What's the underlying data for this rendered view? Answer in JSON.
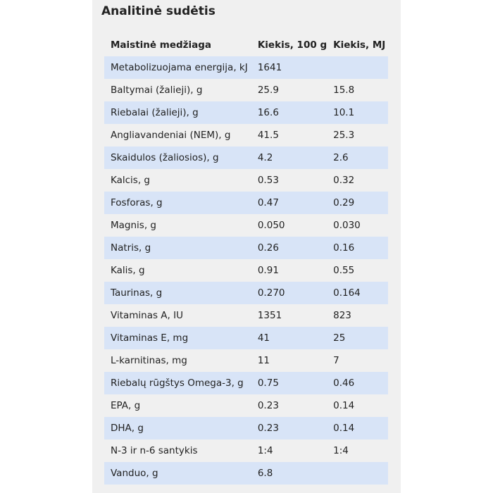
{
  "section": {
    "title": "Analitinė sudėtis"
  },
  "table": {
    "headers": [
      "Maistinė medžiaga",
      "Kiekis, 100 g",
      "Kiekis, MJ"
    ],
    "rows": [
      [
        "Metabolizuojama energija, kJ",
        "1641",
        ""
      ],
      [
        "Baltymai (žalieji), g",
        "25.9",
        "15.8"
      ],
      [
        "Riebalai (žalieji), g",
        "16.6",
        "10.1"
      ],
      [
        "Angliavandeniai (NEM), g",
        "41.5",
        "25.3"
      ],
      [
        "Skaidulos (žaliosios),  g",
        "4.2",
        "2.6"
      ],
      [
        "Kalcis, g",
        "0.53",
        "0.32"
      ],
      [
        "Fosforas, g",
        "0.47",
        "0.29"
      ],
      [
        "Magnis, g",
        "0.050",
        "0.030"
      ],
      [
        "Natris, g",
        "0.26",
        "0.16"
      ],
      [
        "Kalis, g",
        "0.91",
        "0.55"
      ],
      [
        "Taurinas, g",
        "0.270",
        "0.164"
      ],
      [
        "Vitaminas A, IU",
        "1351",
        "823"
      ],
      [
        "Vitaminas E, mg",
        "41",
        "25"
      ],
      [
        "L-karnitinas, mg",
        "11",
        "7"
      ],
      [
        "Riebalų rūgštys Omega-3, g",
        "0.75",
        "0.46"
      ],
      [
        "EPA, g",
        "0.23",
        "0.14"
      ],
      [
        "DHA, g",
        "0.23",
        "0.14"
      ],
      [
        "N-3 ir n-6 santykis",
        "1:4",
        "1:4"
      ],
      [
        "Vanduo, g",
        "6.8",
        ""
      ]
    ]
  }
}
